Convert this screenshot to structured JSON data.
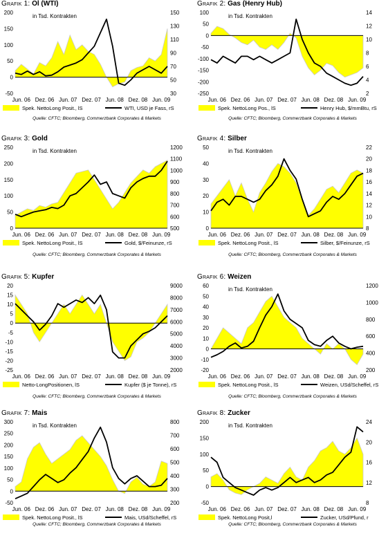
{
  "colors": {
    "area": "#ffff00",
    "area_outline": "#c8c8c8",
    "line": "#000000",
    "zero_line": "#000000"
  },
  "common": {
    "source": "Quelle: CFTC; Bloomberg, Commerzbank Corporates & Markets",
    "x_ticks": [
      "Jun. 06",
      "Dez. 06",
      "Jun. 07",
      "Dez. 07",
      "Jun. 08",
      "Dez. 08",
      "Jun. 09"
    ]
  },
  "chart_data": [
    {
      "type": "area+line",
      "label": "Grafik 1:",
      "title": "Öl (WTI)",
      "annotation": "in Tsd. Kontrakten",
      "ylim_left": [
        -50,
        200
      ],
      "yticks_left": [
        -50,
        0,
        50,
        100,
        150,
        200
      ],
      "ylim_right": [
        30,
        150
      ],
      "yticks_right": [
        30,
        50,
        70,
        90,
        110,
        130,
        150
      ],
      "legend": [
        "Spek. NettoLong Posit., lS",
        "WTI, USD je Fass, rS"
      ],
      "x": [
        0,
        0.04,
        0.08,
        0.12,
        0.16,
        0.2,
        0.24,
        0.28,
        0.32,
        0.36,
        0.4,
        0.44,
        0.48,
        0.52,
        0.56,
        0.6,
        0.64,
        0.68,
        0.72,
        0.76,
        0.8,
        0.84,
        0.88,
        0.92,
        0.96,
        1
      ],
      "area": [
        20,
        40,
        25,
        10,
        45,
        35,
        60,
        110,
        70,
        130,
        85,
        100,
        80,
        70,
        40,
        0,
        -30,
        -20,
        -15,
        20,
        30,
        35,
        60,
        50,
        70,
        150
      ],
      "line": [
        60,
        58,
        63,
        58,
        62,
        56,
        57,
        62,
        69,
        72,
        75,
        80,
        90,
        100,
        120,
        140,
        100,
        45,
        42,
        50,
        60,
        65,
        70,
        65,
        60,
        70
      ]
    },
    {
      "type": "area+line",
      "label": "Grafik 2:",
      "title": "Gas (Henry Hub)",
      "annotation": "in Tsd. Kontrakten",
      "ylim_left": [
        -250,
        100
      ],
      "yticks_left": [
        -250,
        -200,
        -150,
        -100,
        -50,
        0,
        50,
        100
      ],
      "ylim_right": [
        2,
        14
      ],
      "yticks_right": [
        2,
        4,
        6,
        8,
        10,
        12,
        14
      ],
      "legend": [
        "Spek. NettoLong Pos., lS",
        "Henry Hub, $/mmBtu, rS"
      ],
      "x": [
        0,
        0.04,
        0.08,
        0.12,
        0.16,
        0.2,
        0.24,
        0.28,
        0.32,
        0.36,
        0.4,
        0.44,
        0.48,
        0.52,
        0.56,
        0.6,
        0.64,
        0.68,
        0.72,
        0.76,
        0.8,
        0.84,
        0.88,
        0.92,
        0.96,
        1
      ],
      "area": [
        10,
        40,
        30,
        5,
        -10,
        -30,
        -40,
        -20,
        -50,
        -60,
        -40,
        -60,
        -30,
        10,
        -10,
        -90,
        -140,
        -170,
        -150,
        -120,
        -130,
        -160,
        -180,
        -170,
        -160,
        -140
      ],
      "line": [
        7,
        6.5,
        7.5,
        7,
        6.5,
        7.5,
        7.5,
        7,
        7.5,
        7,
        6.5,
        7,
        7.5,
        8,
        13,
        10,
        8,
        6.5,
        6,
        5,
        4.5,
        4,
        3.5,
        3.2,
        3.5,
        4.5
      ]
    },
    {
      "type": "area+line",
      "label": "Grafik 3:",
      "title": "Gold",
      "annotation": "in Tsd. Kontrakten",
      "ylim_left": [
        0,
        250
      ],
      "yticks_left": [
        0,
        50,
        100,
        150,
        200,
        250
      ],
      "ylim_right": [
        500,
        1200
      ],
      "yticks_right": [
        500,
        600,
        700,
        800,
        900,
        1000,
        1100,
        1200
      ],
      "legend": [
        "Spek. NettoLong Posit., lS",
        "Gold, $/Feinunze, rS"
      ],
      "x": [
        0,
        0.04,
        0.08,
        0.12,
        0.16,
        0.2,
        0.24,
        0.28,
        0.32,
        0.36,
        0.4,
        0.44,
        0.48,
        0.52,
        0.56,
        0.6,
        0.64,
        0.68,
        0.72,
        0.76,
        0.8,
        0.84,
        0.88,
        0.92,
        0.96,
        1
      ],
      "area": [
        40,
        50,
        60,
        55,
        70,
        65,
        75,
        80,
        110,
        140,
        170,
        175,
        180,
        150,
        120,
        90,
        60,
        80,
        110,
        140,
        160,
        180,
        170,
        190,
        200,
        210
      ],
      "line": [
        620,
        600,
        620,
        640,
        650,
        660,
        680,
        670,
        700,
        780,
        800,
        850,
        900,
        960,
        880,
        900,
        800,
        780,
        760,
        850,
        900,
        930,
        950,
        950,
        1000,
        1080
      ]
    },
    {
      "type": "area+line",
      "label": "Grafik 4:",
      "title": "Silber",
      "annotation": "in Tsd. Kontrakten",
      "ylim_left": [
        0,
        50
      ],
      "yticks_left": [
        0,
        10,
        20,
        30,
        40,
        50
      ],
      "ylim_right": [
        8,
        22
      ],
      "yticks_right": [
        8,
        10,
        12,
        14,
        16,
        18,
        20,
        22
      ],
      "legend": [
        "Spek. NettoLong Posit., lS",
        "Silber, $/Feinunze, rS"
      ],
      "x": [
        0,
        0.04,
        0.08,
        0.12,
        0.16,
        0.2,
        0.24,
        0.28,
        0.32,
        0.36,
        0.4,
        0.44,
        0.48,
        0.52,
        0.56,
        0.6,
        0.64,
        0.68,
        0.72,
        0.76,
        0.8,
        0.84,
        0.88,
        0.92,
        0.96,
        1
      ],
      "area": [
        15,
        20,
        25,
        30,
        20,
        28,
        18,
        10,
        22,
        28,
        35,
        40,
        38,
        34,
        28,
        18,
        8,
        12,
        18,
        24,
        26,
        22,
        28,
        34,
        36,
        34
      ],
      "line": [
        11,
        12.5,
        13,
        12,
        13.5,
        13.5,
        13,
        12.5,
        13,
        14.5,
        15.5,
        17,
        20,
        18,
        16.5,
        13,
        10,
        10.5,
        11,
        12.5,
        13.5,
        13,
        14,
        15.5,
        17,
        17.5
      ]
    },
    {
      "type": "area+line",
      "label": "Grafik 5:",
      "title": "Kupfer",
      "annotation": "",
      "ylim_left": [
        -25,
        20
      ],
      "yticks_left": [
        -25,
        -20,
        -15,
        -10,
        -5,
        0,
        5,
        10,
        15,
        20
      ],
      "ylim_right": [
        2000,
        9000
      ],
      "yticks_right": [
        2000,
        3000,
        4000,
        5000,
        6000,
        7000,
        8000,
        9000
      ],
      "legend": [
        "Netto-LongPositionen, lS",
        "Kupfer ($ je Tonne), rS"
      ],
      "x": [
        0,
        0.04,
        0.08,
        0.12,
        0.16,
        0.2,
        0.24,
        0.28,
        0.32,
        0.36,
        0.4,
        0.44,
        0.48,
        0.52,
        0.56,
        0.6,
        0.64,
        0.68,
        0.72,
        0.76,
        0.8,
        0.84,
        0.88,
        0.92,
        0.96,
        1
      ],
      "area": [
        15,
        10,
        5,
        -5,
        -10,
        -5,
        0,
        5,
        10,
        5,
        10,
        15,
        10,
        5,
        10,
        0,
        -10,
        -15,
        -20,
        -18,
        -10,
        -8,
        -5,
        0,
        5,
        10
      ],
      "line": [
        7500,
        7000,
        6500,
        6000,
        5300,
        5800,
        6500,
        7500,
        7200,
        7500,
        7800,
        7600,
        8000,
        7500,
        8200,
        7000,
        3500,
        3000,
        3000,
        4000,
        4500,
        5000,
        5200,
        5500,
        6000,
        6500
      ]
    },
    {
      "type": "area+line",
      "label": "Grafik 6:",
      "title": "Weizen",
      "annotation": "in Tsd. Kontrakten",
      "ylim_left": [
        -20,
        60
      ],
      "yticks_left": [
        -20,
        -10,
        0,
        10,
        20,
        30,
        40,
        50,
        60
      ],
      "ylim_right": [
        200,
        1200
      ],
      "yticks_right": [
        200,
        400,
        600,
        800,
        1000,
        1200
      ],
      "legend": [
        "Spek. NettoLong Posit., lS",
        "Weizen, USd/Scheffel, rS"
      ],
      "x": [
        0,
        0.04,
        0.08,
        0.12,
        0.16,
        0.2,
        0.24,
        0.28,
        0.32,
        0.36,
        0.4,
        0.44,
        0.48,
        0.52,
        0.56,
        0.6,
        0.64,
        0.68,
        0.72,
        0.76,
        0.8,
        0.84,
        0.88,
        0.92,
        0.96,
        1
      ],
      "area": [
        0,
        10,
        20,
        15,
        10,
        5,
        20,
        25,
        35,
        45,
        50,
        40,
        30,
        25,
        20,
        10,
        5,
        0,
        -5,
        5,
        0,
        5,
        0,
        -10,
        -15,
        -5
      ],
      "line": [
        350,
        380,
        420,
        480,
        520,
        460,
        480,
        540,
        700,
        850,
        950,
        1100,
        900,
        800,
        750,
        700,
        550,
        500,
        480,
        550,
        600,
        520,
        480,
        450,
        470,
        480
      ]
    },
    {
      "type": "area+line",
      "label": "Grafik 7:",
      "title": "Mais",
      "annotation": "in Tsd. Kontrakten",
      "ylim_left": [
        -50,
        300
      ],
      "yticks_left": [
        -50,
        0,
        50,
        100,
        150,
        200,
        250,
        300
      ],
      "ylim_right": [
        200,
        800
      ],
      "yticks_right": [
        200,
        300,
        400,
        500,
        600,
        700,
        800
      ],
      "legend": [
        "Spek. NettoLong Posit., lS",
        "Mais, USd/Scheffel, rS"
      ],
      "x": [
        0,
        0.04,
        0.08,
        0.12,
        0.16,
        0.2,
        0.24,
        0.28,
        0.32,
        0.36,
        0.4,
        0.44,
        0.48,
        0.52,
        0.56,
        0.6,
        0.64,
        0.68,
        0.72,
        0.76,
        0.8,
        0.84,
        0.88,
        0.92,
        0.96,
        1
      ],
      "area": [
        20,
        40,
        140,
        190,
        210,
        160,
        120,
        140,
        160,
        180,
        220,
        240,
        210,
        180,
        150,
        110,
        50,
        0,
        -10,
        40,
        60,
        30,
        20,
        40,
        130,
        120
      ],
      "line": [
        230,
        250,
        270,
        320,
        370,
        410,
        380,
        350,
        370,
        420,
        460,
        520,
        580,
        680,
        760,
        650,
        460,
        380,
        340,
        380,
        400,
        360,
        320,
        320,
        330,
        380
      ]
    },
    {
      "type": "area+line",
      "label": "Grafik 8:",
      "title": "Zucker",
      "annotation": "in Tsd. Kontrakten",
      "ylim_left": [
        -50,
        200
      ],
      "yticks_left": [
        -50,
        0,
        50,
        100,
        150,
        200
      ],
      "ylim_right": [
        8,
        24
      ],
      "yticks_right": [
        8,
        12,
        16,
        20,
        24
      ],
      "legend": [
        "Spek. NettoLong Posit,l",
        "Zucker, USd/Pfund, r"
      ],
      "x": [
        0,
        0.04,
        0.08,
        0.12,
        0.16,
        0.2,
        0.24,
        0.28,
        0.32,
        0.36,
        0.4,
        0.44,
        0.48,
        0.52,
        0.56,
        0.6,
        0.64,
        0.68,
        0.72,
        0.76,
        0.8,
        0.84,
        0.88,
        0.92,
        0.96,
        1
      ],
      "area": [
        30,
        40,
        20,
        -10,
        -20,
        -25,
        -10,
        0,
        10,
        30,
        20,
        10,
        40,
        60,
        30,
        20,
        60,
        80,
        110,
        120,
        140,
        110,
        100,
        120,
        150,
        100
      ],
      "line": [
        17,
        16,
        13,
        12,
        11,
        10.5,
        10,
        9.5,
        10.5,
        11,
        10.5,
        11,
        12,
        13,
        12,
        12.5,
        13,
        12,
        12.5,
        13.5,
        14,
        15.5,
        17,
        18,
        23,
        22
      ]
    }
  ]
}
